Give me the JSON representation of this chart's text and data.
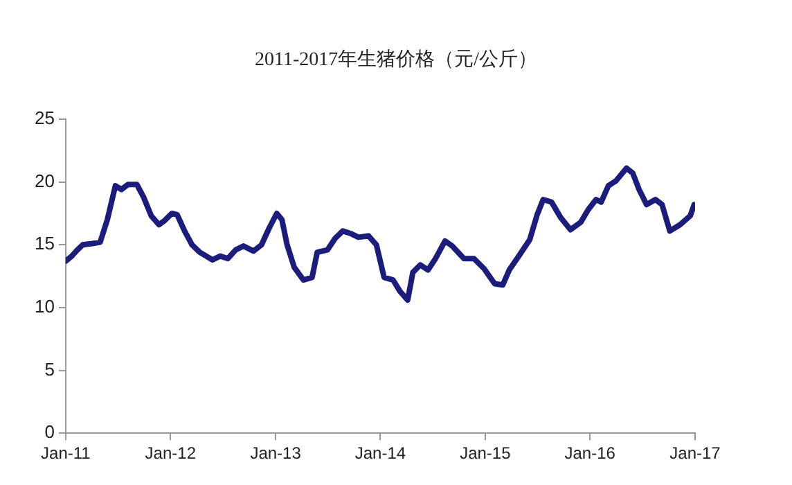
{
  "chart_data": {
    "type": "line",
    "title": "2011-2017年生猪价格（元/公斤）",
    "x": [
      "2011-01-01",
      "2011-01-22",
      "2011-02-11",
      "2011-03-01",
      "2011-04-04",
      "2011-05-01",
      "2011-05-26",
      "2011-06-23",
      "2011-07-14",
      "2011-08-06",
      "2011-09-06",
      "2011-09-29",
      "2011-10-26",
      "2011-11-22",
      "2011-12-10",
      "2012-01-06",
      "2012-01-24",
      "2012-02-19",
      "2012-03-16",
      "2012-04-12",
      "2012-05-26",
      "2012-06-22",
      "2012-07-19",
      "2012-08-15",
      "2012-09-11",
      "2012-10-16",
      "2012-11-13",
      "2012-12-09",
      "2013-01-05",
      "2013-01-23",
      "2013-02-10",
      "2013-03-07",
      "2013-04-08",
      "2013-05-08",
      "2013-05-26",
      "2013-07-01",
      "2013-07-27",
      "2013-08-23",
      "2013-09-19",
      "2013-10-16",
      "2013-11-21",
      "2013-12-18",
      "2014-01-14",
      "2014-02-14",
      "2014-03-10",
      "2014-04-06",
      "2014-04-24",
      "2014-05-20",
      "2014-06-16",
      "2014-07-12",
      "2014-08-14",
      "2014-09-08",
      "2014-10-19",
      "2014-11-23",
      "2014-12-28",
      "2015-02-03",
      "2015-03-03",
      "2015-03-26",
      "2015-05-01",
      "2015-06-05",
      "2015-07-01",
      "2015-07-22",
      "2015-08-20",
      "2015-09-20",
      "2015-10-25",
      "2015-11-30",
      "2015-12-26",
      "2016-01-22",
      "2016-02-09",
      "2016-03-05",
      "2016-04-01",
      "2016-05-07",
      "2016-05-29",
      "2016-06-20",
      "2016-07-16",
      "2016-08-16",
      "2016-09-08",
      "2016-10-05",
      "2016-11-10",
      "2016-12-15",
      "2016-12-29"
    ],
    "series": [
      {
        "color": "#1c1c7c",
        "values": [
          13.7,
          14.1,
          14.6,
          15.0,
          15.1,
          15.2,
          17.0,
          19.7,
          19.4,
          19.8,
          19.8,
          18.8,
          17.3,
          16.6,
          16.9,
          17.5,
          17.4,
          16.1,
          15.0,
          14.4,
          13.8,
          14.1,
          13.9,
          14.6,
          14.9,
          14.5,
          15.0,
          16.3,
          17.5,
          17.0,
          15.0,
          13.2,
          12.2,
          12.4,
          14.4,
          14.6,
          15.5,
          16.1,
          15.9,
          15.6,
          15.7,
          15.0,
          12.4,
          12.2,
          11.3,
          10.6,
          12.8,
          13.4,
          13.0,
          13.9,
          15.3,
          14.9,
          13.9,
          13.9,
          13.1,
          11.9,
          11.8,
          13.0,
          14.2,
          15.4,
          17.4,
          18.6,
          18.4,
          17.2,
          16.2,
          16.8,
          17.8,
          18.6,
          18.4,
          19.7,
          20.1,
          21.1,
          20.7,
          19.4,
          18.2,
          18.6,
          18.2,
          16.1,
          16.6,
          17.3,
          18.2
        ]
      }
    ],
    "xlim": [
      "2011-01-01",
      "2017-01-01"
    ],
    "xticks": [
      {
        "value": "2011-01-01",
        "label": "Jan-11"
      },
      {
        "value": "2012-01-01",
        "label": "Jan-12"
      },
      {
        "value": "2013-01-01",
        "label": "Jan-13"
      },
      {
        "value": "2014-01-01",
        "label": "Jan-14"
      },
      {
        "value": "2015-01-01",
        "label": "Jan-15"
      },
      {
        "value": "2016-01-01",
        "label": "Jan-16"
      },
      {
        "value": "2017-01-01",
        "label": "Jan-17"
      }
    ],
    "ylim": [
      0,
      25
    ],
    "yticks": [
      0,
      5,
      10,
      15,
      20,
      25
    ],
    "grid": false,
    "legend": false,
    "marker": "none",
    "line_style": "solid"
  }
}
